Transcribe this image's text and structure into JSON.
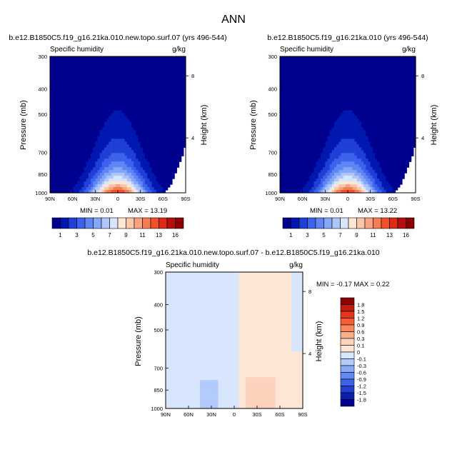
{
  "figure": {
    "title": "ANN"
  },
  "chart_data": [
    {
      "type": "heatmap",
      "title": "b.e12.B1850C5.f19_g16.21ka.010.new.topo.surf.07 (yrs 496-544)",
      "subtitle_left": "Specific humidity",
      "subtitle_right": "g/kg",
      "ylabel": "Pressure (mb)",
      "ylabel_right": "Height (km)",
      "x_ticks": [
        "90N",
        "60N",
        "30N",
        "0",
        "30S",
        "60S",
        "90S"
      ],
      "y_ticks": [
        "300",
        "400",
        "500",
        "700",
        "850",
        "1000"
      ],
      "y_ticks_right": [
        "8",
        "4"
      ],
      "min_label": "MIN =   0.01",
      "max_label": "MAX =  13.19",
      "field": {
        "peak": 13.19,
        "peak_lat": 0,
        "asym": 1.0
      },
      "colorbar": {
        "levels": [
          "1",
          "3",
          "5",
          "7",
          "9",
          "11",
          "13",
          "16"
        ],
        "colors": [
          "#00008f",
          "#0018b0",
          "#1f3fd6",
          "#3d63ec",
          "#5f86f4",
          "#86a6f8",
          "#afc6fb",
          "#d8e6fd",
          "#fde6d6",
          "#fbc7ac",
          "#f9a47f",
          "#f67c53",
          "#f0512b",
          "#dd2a13",
          "#b50e0c",
          "#8c0004"
        ]
      }
    },
    {
      "type": "heatmap",
      "title": "b.e12.B1850C5.f19_g16.21ka.010 (yrs 496-544)",
      "subtitle_left": "Specific humidity",
      "subtitle_right": "g/kg",
      "ylabel": "Pressure (mb)",
      "ylabel_right": "Height (km)",
      "x_ticks": [
        "90N",
        "60N",
        "30N",
        "0",
        "30S",
        "60S",
        "90S"
      ],
      "y_ticks": [
        "300",
        "400",
        "500",
        "700",
        "850",
        "1000"
      ],
      "y_ticks_right": [
        "8",
        "4"
      ],
      "min_label": "MIN =   0.01",
      "max_label": "MAX =  13.22",
      "field": {
        "peak": 13.22,
        "peak_lat": 0,
        "asym": 1.0
      }
    },
    {
      "type": "heatmap",
      "title": "b.e12.B1850C5.f19_g16.21ka.010.new.topo.surf.07 - b.e12.B1850C5.f19_g16.21ka.010",
      "subtitle_left": "Specific humidity",
      "subtitle_right": "g/kg",
      "ylabel": "Pressure (mb)",
      "ylabel_right": "Height (km)",
      "x_ticks": [
        "90N",
        "60N",
        "30N",
        "0",
        "30S",
        "60S",
        "90S"
      ],
      "y_ticks": [
        "300",
        "400",
        "500",
        "700",
        "850",
        "1000"
      ],
      "y_ticks_right": [
        "8",
        "4"
      ],
      "minmax_label": "MIN = -0.17   MAX =   0.22",
      "colorbar": {
        "levels": [
          "1.8",
          "1.5",
          "1.2",
          "0.9",
          "0.6",
          "0.3",
          "0.1",
          "0",
          "-0.1",
          "-0.3",
          "-0.6",
          "-0.9",
          "-1.2",
          "-1.5",
          "-1.8"
        ],
        "colors": [
          "#8c0004",
          "#c11a10",
          "#e4361b",
          "#f45c34",
          "#f98760",
          "#fbae8c",
          "#fdd3bd",
          "#fde6d6",
          "#d8e6fd",
          "#b3cbfb",
          "#8aa9f7",
          "#6389f3",
          "#3e63e8",
          "#2040d0",
          "#0a1fae",
          "#00008f"
        ]
      }
    }
  ]
}
